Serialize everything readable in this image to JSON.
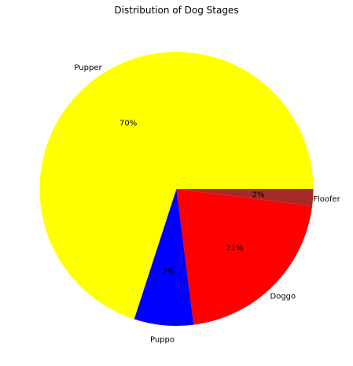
{
  "chart_data": {
    "type": "pie",
    "title": "Distribution of Dog Stages",
    "categories": [
      "Pupper",
      "Puppo",
      "Doggo",
      "Floofer"
    ],
    "values": [
      70,
      7,
      21,
      2
    ],
    "value_labels": [
      "70%",
      "7%",
      "21%",
      "2%"
    ],
    "colors": [
      "#ffff00",
      "#0000ff",
      "#ff0000",
      "#a52a2a"
    ],
    "start_angle_deg": 0,
    "direction": "counterclockwise",
    "legend": "none"
  }
}
